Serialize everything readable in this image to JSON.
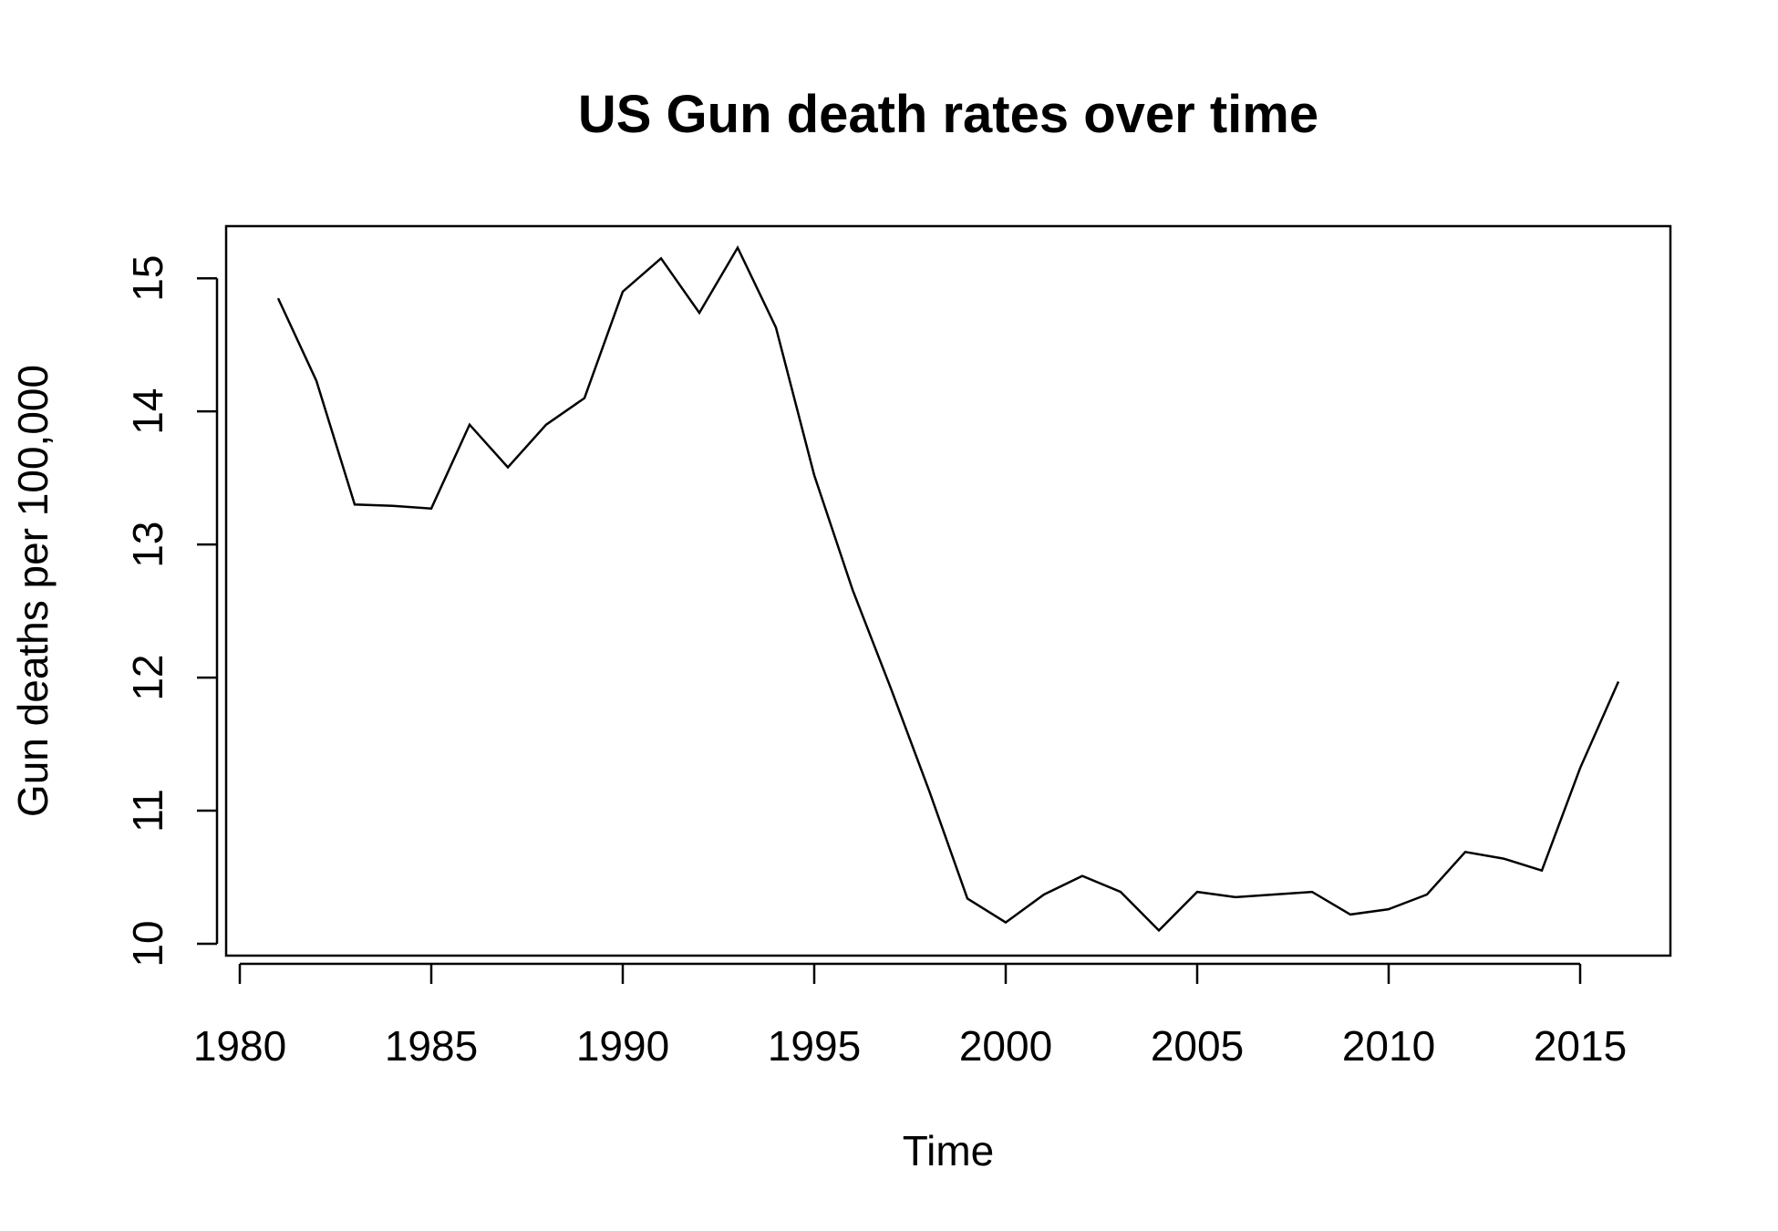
{
  "chart_data": {
    "type": "line",
    "title": "US Gun death rates over time",
    "xlabel": "Time",
    "ylabel": "Gun deaths per 100,000",
    "xlim": [
      1980,
      2016
    ],
    "ylim": [
      10,
      15.2
    ],
    "x_ticks": [
      1980,
      1985,
      1990,
      1995,
      2000,
      2005,
      2010,
      2015
    ],
    "y_ticks": [
      10,
      11,
      12,
      13,
      14,
      15
    ],
    "grid": false,
    "legend": "none",
    "line_color": "#000000",
    "series": [
      {
        "x": [
          1981,
          1982,
          1983,
          1984,
          1985,
          1986,
          1987,
          1988,
          1989,
          1990,
          1991,
          1992,
          1993,
          1994,
          1995,
          1996,
          1997,
          1998,
          1999,
          2000,
          2001,
          2002,
          2003,
          2004,
          2005,
          2006,
          2007,
          2008,
          2009,
          2010,
          2011,
          2012,
          2013,
          2014,
          2015,
          2016
        ],
        "values": [
          14.85,
          14.23,
          13.3,
          13.29,
          13.27,
          13.9,
          13.58,
          13.9,
          14.1,
          14.9,
          15.15,
          14.74,
          15.23,
          14.63,
          13.52,
          12.66,
          11.92,
          11.15,
          10.34,
          10.16,
          10.37,
          10.51,
          10.39,
          10.1,
          10.39,
          10.35,
          10.37,
          10.39,
          10.22,
          10.26,
          10.37,
          10.69,
          10.64,
          10.55,
          11.32,
          11.97
        ]
      }
    ]
  }
}
